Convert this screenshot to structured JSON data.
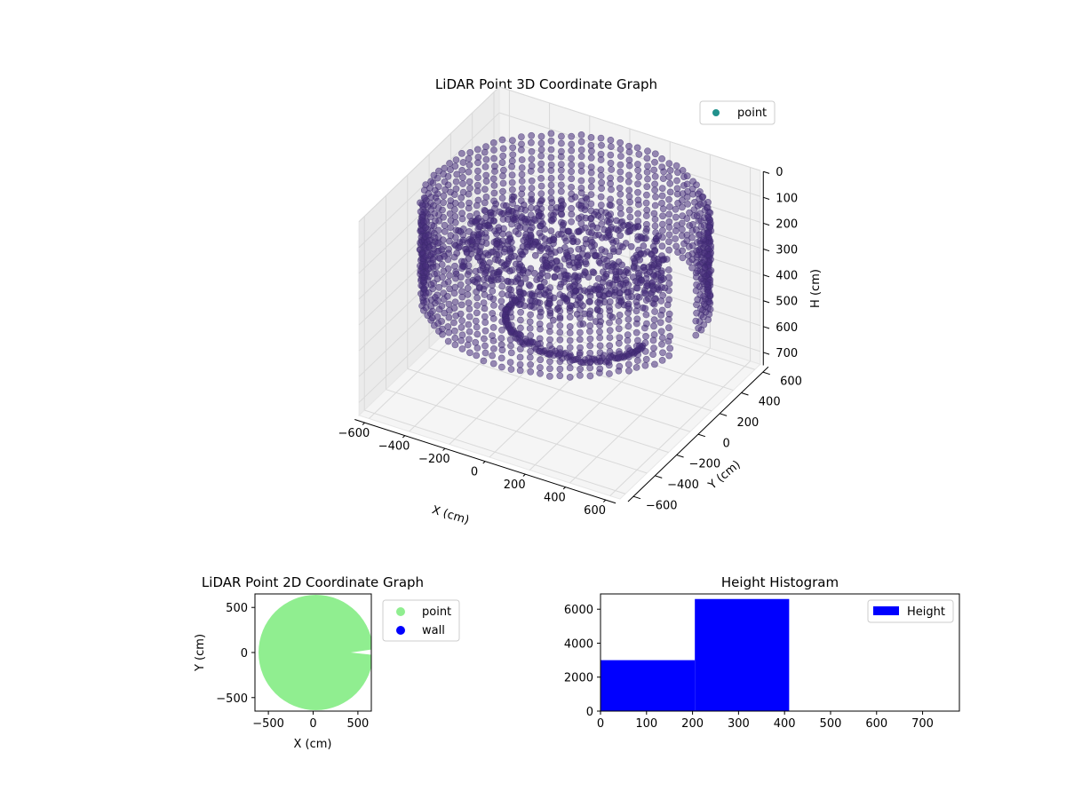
{
  "chart_data": [
    {
      "type": "scatter",
      "projection": "3d",
      "title": "LiDAR Point 3D Coordinate Graph",
      "xlabel": "X (cm)",
      "ylabel": "Y (cm)",
      "zlabel": "H (cm)",
      "xlim": [
        -650,
        650
      ],
      "ylim": [
        -650,
        650
      ],
      "zlim": [
        750,
        0
      ],
      "x_ticks": [
        "−600",
        "−400",
        "−200",
        "0",
        "200",
        "400",
        "600"
      ],
      "y_ticks": [
        "−600",
        "−400",
        "−200",
        "0",
        "200",
        "400",
        "600"
      ],
      "z_ticks": [
        "0",
        "100",
        "200",
        "300",
        "400",
        "500",
        "600",
        "700"
      ],
      "legend": {
        "placement": "upper-right",
        "entries": [
          {
            "label": "point",
            "color": "#21918c"
          }
        ]
      },
      "point_color": "#472d7b",
      "pane_color": "#f2f2f2",
      "grid": true,
      "clusters": [
        {
          "name": "",
          "shape": "cylinder-wall",
          "radius": 640,
          "center_x": 30,
          "center_y": 0,
          "h_min": 50,
          "h_max": 400,
          "count": 1250
        },
        {
          "name": "",
          "shape": "inner-floor",
          "radius": 450,
          "center_x": 0,
          "center_y": 0,
          "h_min": 180,
          "h_max": 300,
          "count": 650
        }
      ]
    },
    {
      "type": "scatter",
      "title": "LiDAR Point 2D Coordinate Graph",
      "xlabel": "X (cm)",
      "ylabel": "Y (cm)",
      "xlim": [
        -650,
        650
      ],
      "ylim": [
        -650,
        650
      ],
      "x_ticks": [
        -500,
        0,
        500
      ],
      "y_ticks": [
        -500,
        0,
        500
      ],
      "series": [
        {
          "name": "point",
          "color": "#90ee90",
          "shape": "disk",
          "radius": 640,
          "center_x": 30,
          "center_y": 0
        },
        {
          "name": "wall",
          "color": "#0000ff",
          "values": []
        }
      ],
      "legend": {
        "placement": "outside-right"
      }
    },
    {
      "type": "bar",
      "title": "Height Histogram",
      "xlim": [
        0,
        780
      ],
      "ylim": [
        0,
        6900
      ],
      "x_ticks": [
        0,
        100,
        200,
        300,
        400,
        500,
        600,
        700
      ],
      "y_ticks": [
        0,
        2000,
        4000,
        6000
      ],
      "bins": [
        {
          "start": 0,
          "end": 205,
          "count": 3000
        },
        {
          "start": 205,
          "end": 410,
          "count": 6600
        },
        {
          "start": 410,
          "end": 615,
          "count": 0
        },
        {
          "start": 615,
          "end": 780,
          "count": 0
        }
      ],
      "series": [
        {
          "name": "Height",
          "color": "#0000ff"
        }
      ],
      "legend": {
        "placement": "upper-right"
      }
    }
  ]
}
